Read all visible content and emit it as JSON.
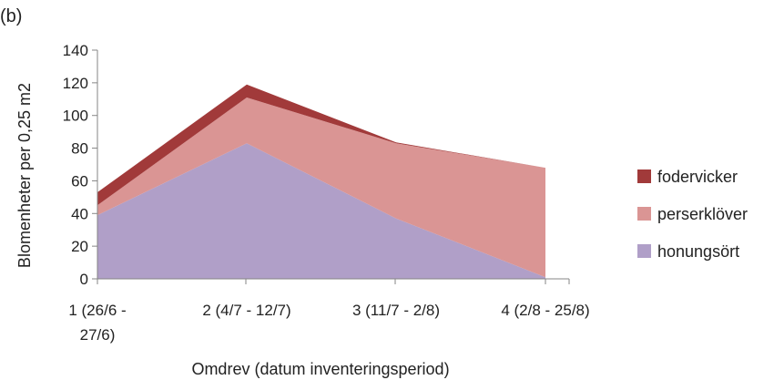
{
  "panel_label": "(b)",
  "chart_data": {
    "type": "area",
    "stacked": true,
    "title": "",
    "xlabel": "Omdrev (datum inventeringsperiod)",
    "ylabel": "Blomenheter per 0,25 m2",
    "ylim": [
      0,
      140
    ],
    "yticks": [
      0,
      20,
      40,
      60,
      80,
      100,
      120,
      140
    ],
    "categories": [
      [
        "1 (26/6 -",
        "27/6)"
      ],
      [
        "2 (4/7 - 12/7)"
      ],
      [
        "3 (11/7 - 2/8)"
      ],
      [
        "4 (2/8 - 25/8)"
      ]
    ],
    "series": [
      {
        "name": "honungsört",
        "color": "#b09fc8",
        "values": [
          39,
          83,
          37,
          1
        ]
      },
      {
        "name": "perserklöver",
        "color": "#da9594",
        "values": [
          6,
          28,
          46,
          67
        ]
      },
      {
        "name": "fodervicker",
        "color": "#a13a3a",
        "values": [
          8,
          8,
          0.5,
          0
        ]
      }
    ],
    "legend_position": "right",
    "grid": false
  }
}
